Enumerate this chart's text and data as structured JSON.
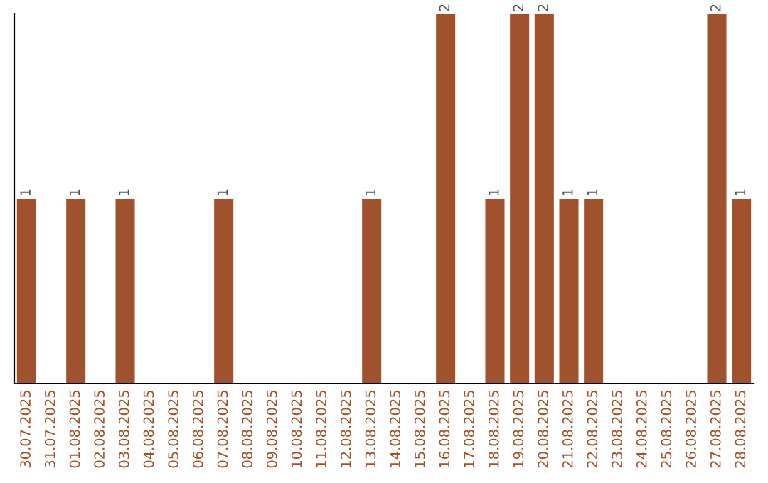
{
  "chart_data": {
    "type": "bar",
    "categories": [
      "30.07.2025",
      "31.07.2025",
      "01.08.2025",
      "02.08.2025",
      "03.08.2025",
      "04.08.2025",
      "05.08.2025",
      "06.08.2025",
      "07.08.2025",
      "08.08.2025",
      "09.08.2025",
      "10.08.2025",
      "11.08.2025",
      "12.08.2025",
      "13.08.2025",
      "14.08.2025",
      "15.08.2025",
      "16.08.2025",
      "17.08.2025",
      "18.08.2025",
      "19.08.2025",
      "20.08.2025",
      "21.08.2025",
      "22.08.2025",
      "23.08.2025",
      "24.08.2025",
      "25.08.2025",
      "26.08.2025",
      "27.08.2025",
      "28.08.2025"
    ],
    "values": [
      1,
      0,
      1,
      0,
      1,
      0,
      0,
      0,
      1,
      0,
      0,
      0,
      0,
      0,
      1,
      0,
      0,
      2,
      0,
      1,
      2,
      2,
      1,
      1,
      0,
      0,
      0,
      0,
      2,
      1
    ],
    "value_labels": [
      "1",
      null,
      "1",
      null,
      "1",
      null,
      null,
      null,
      "1",
      null,
      null,
      null,
      null,
      null,
      "1",
      null,
      null,
      "2",
      null,
      "1",
      "2",
      "2",
      "1",
      "1",
      null,
      null,
      null,
      null,
      "2",
      "1"
    ],
    "color": "#a0522d",
    "grid": false,
    "legend": false
  }
}
